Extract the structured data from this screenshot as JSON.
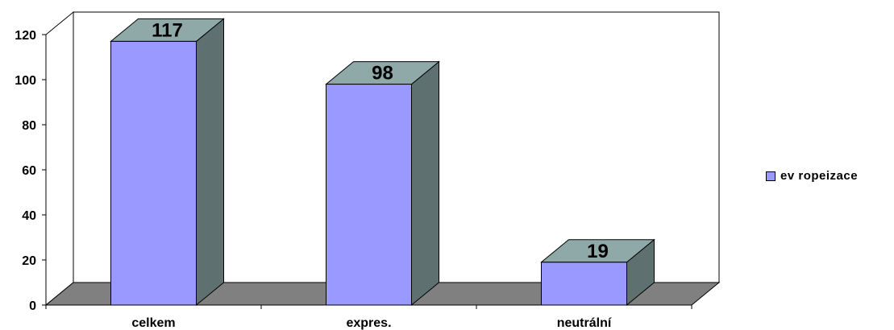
{
  "chart_data": {
    "type": "bar",
    "style": "3d-column",
    "categories": [
      "celkem",
      "expres.",
      "neutrální"
    ],
    "series": [
      {
        "name": "evropeizace",
        "values": [
          117,
          98,
          19
        ]
      }
    ],
    "data_labels": [
      "117",
      "98",
      "19"
    ],
    "y_ticks": [
      "0",
      "20",
      "40",
      "60",
      "80",
      "100",
      "120"
    ],
    "ylim": [
      0,
      120
    ],
    "grid": false,
    "legend_position": "right"
  },
  "legend": {
    "label": "ev ropeizace"
  },
  "colors": {
    "bar_front": "#9999ff",
    "bar_top": "#8fa8a8",
    "bar_side": "#5f7070",
    "floor": "#808080",
    "back_wall": "#ffffff",
    "outline": "#000000"
  }
}
